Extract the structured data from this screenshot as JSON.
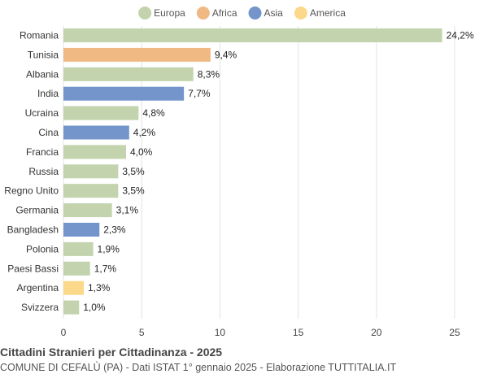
{
  "chart_data": {
    "type": "bar",
    "orientation": "horizontal",
    "title": "Cittadini Stranieri per Cittadinanza - 2025",
    "subtitle": "COMUNE DI CEFALÙ (PA) - Dati ISTAT 1° gennaio 2025 - Elaborazione TUTTITALIA.IT",
    "categories": [
      "Romania",
      "Tunisia",
      "Albania",
      "India",
      "Ucraina",
      "Cina",
      "Francia",
      "Russia",
      "Regno Unito",
      "Germania",
      "Bangladesh",
      "Polonia",
      "Paesi Bassi",
      "Argentina",
      "Svizzera"
    ],
    "values": [
      24.2,
      9.4,
      8.3,
      7.7,
      4.8,
      4.2,
      4.0,
      3.5,
      3.5,
      3.1,
      2.3,
      1.9,
      1.7,
      1.3,
      1.0
    ],
    "value_labels": [
      "24,2%",
      "9,4%",
      "8,3%",
      "7,7%",
      "4,8%",
      "4,2%",
      "4,0%",
      "3,5%",
      "3,5%",
      "3,1%",
      "2,3%",
      "1,9%",
      "1,7%",
      "1,3%",
      "1,0%"
    ],
    "groups": [
      "Europa",
      "Africa",
      "Europa",
      "Asia",
      "Europa",
      "Asia",
      "Europa",
      "Europa",
      "Europa",
      "Europa",
      "Asia",
      "Europa",
      "Europa",
      "America",
      "Europa"
    ],
    "legend": [
      {
        "name": "Europa",
        "color": "#c2d3ad"
      },
      {
        "name": "Africa",
        "color": "#f0b984"
      },
      {
        "name": "Asia",
        "color": "#7495cc"
      },
      {
        "name": "America",
        "color": "#fcd98a"
      }
    ],
    "legend_position": "top",
    "xlim": [
      0,
      25
    ],
    "xticks": [
      0,
      5,
      10,
      15,
      20,
      25
    ],
    "xlabel": "",
    "ylabel": "",
    "grid": true
  }
}
